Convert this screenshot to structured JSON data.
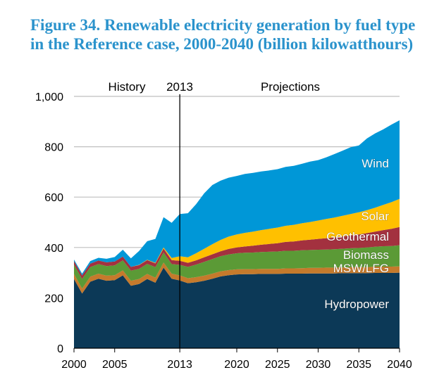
{
  "chart_data": {
    "type": "area",
    "stacked": true,
    "title": "Figure 34. Renewable electricity generation by fuel type in the Reference case, 2000-2040 (billion kilowatthours)",
    "xlabel": "",
    "ylabel": "",
    "xlim": [
      2000,
      2040
    ],
    "ylim": [
      0,
      1000
    ],
    "x_ticks": [
      "2000",
      "2005",
      "2013",
      "2020",
      "2025",
      "2030",
      "2035",
      "2040"
    ],
    "y_ticks": [
      "0",
      "200",
      "400",
      "600",
      "800",
      "1,000"
    ],
    "grid": "horizontal",
    "annotations": {
      "history": "History",
      "divider_year": "2013",
      "projections": "Projections"
    },
    "divider_x": 2013,
    "x": [
      2000,
      2001,
      2002,
      2003,
      2004,
      2005,
      2006,
      2007,
      2008,
      2009,
      2010,
      2011,
      2012,
      2013,
      2014,
      2015,
      2016,
      2017,
      2018,
      2019,
      2020,
      2021,
      2022,
      2023,
      2024,
      2025,
      2026,
      2027,
      2028,
      2029,
      2030,
      2031,
      2032,
      2033,
      2034,
      2035,
      2036,
      2037,
      2038,
      2039,
      2040
    ],
    "series": [
      {
        "name": "Hydropower",
        "color": "#0c3957",
        "values": [
          275,
          217,
          264,
          276,
          268,
          270,
          289,
          248,
          255,
          275,
          260,
          320,
          276,
          269,
          258,
          262,
          268,
          276,
          285,
          290,
          293,
          294,
          294,
          295,
          295,
          295,
          296,
          296,
          296,
          297,
          297,
          297,
          297,
          298,
          298,
          298,
          298,
          299,
          299,
          299,
          300
        ]
      },
      {
        "name": "MSW/LFG",
        "color": "#c57a2c",
        "values": [
          20,
          20,
          20,
          20,
          20,
          20,
          20,
          20,
          20,
          20,
          20,
          20,
          20,
          20,
          20,
          20,
          20,
          20,
          20,
          20,
          20,
          20,
          20,
          20,
          20,
          20,
          21,
          21,
          22,
          22,
          22,
          23,
          23,
          23,
          24,
          24,
          24,
          25,
          25,
          25,
          25
        ]
      },
      {
        "name": "Biomass",
        "color": "#5b9a36",
        "values": [
          37,
          38,
          38,
          38,
          38,
          39,
          40,
          40,
          40,
          40,
          42,
          40,
          38,
          42,
          45,
          50,
          55,
          58,
          60,
          62,
          64,
          65,
          66,
          67,
          68,
          69,
          70,
          70,
          71,
          71,
          72,
          72,
          73,
          74,
          75,
          76,
          78,
          79,
          81,
          82,
          84
        ]
      },
      {
        "name": "Geothermal",
        "color": "#a3313f",
        "values": [
          14,
          14,
          14,
          14,
          15,
          15,
          15,
          15,
          15,
          15,
          15,
          16,
          16,
          16,
          16,
          17,
          18,
          19,
          20,
          22,
          23,
          25,
          27,
          29,
          31,
          33,
          35,
          37,
          39,
          41,
          43,
          45,
          47,
          49,
          51,
          54,
          57,
          60,
          64,
          68,
          72
        ]
      },
      {
        "name": "Solar",
        "color": "#ffc000",
        "values": [
          0,
          0,
          0,
          0,
          0,
          0,
          0,
          0,
          1,
          1,
          2,
          4,
          8,
          18,
          22,
          28,
          34,
          40,
          45,
          49,
          52,
          54,
          56,
          58,
          60,
          62,
          64,
          66,
          68,
          70,
          73,
          76,
          79,
          82,
          85,
          88,
          91,
          95,
          100,
          106,
          112
        ]
      },
      {
        "name": "Wind",
        "color": "#0097d7",
        "values": [
          6,
          7,
          10,
          11,
          14,
          18,
          27,
          34,
          55,
          74,
          95,
          120,
          140,
          168,
          175,
          195,
          220,
          235,
          235,
          234,
          232,
          234,
          233,
          233,
          232,
          232,
          234,
          234,
          236,
          240,
          240,
          245,
          252,
          258,
          265,
          265,
          285,
          295,
          300,
          308,
          312
        ]
      }
    ]
  }
}
